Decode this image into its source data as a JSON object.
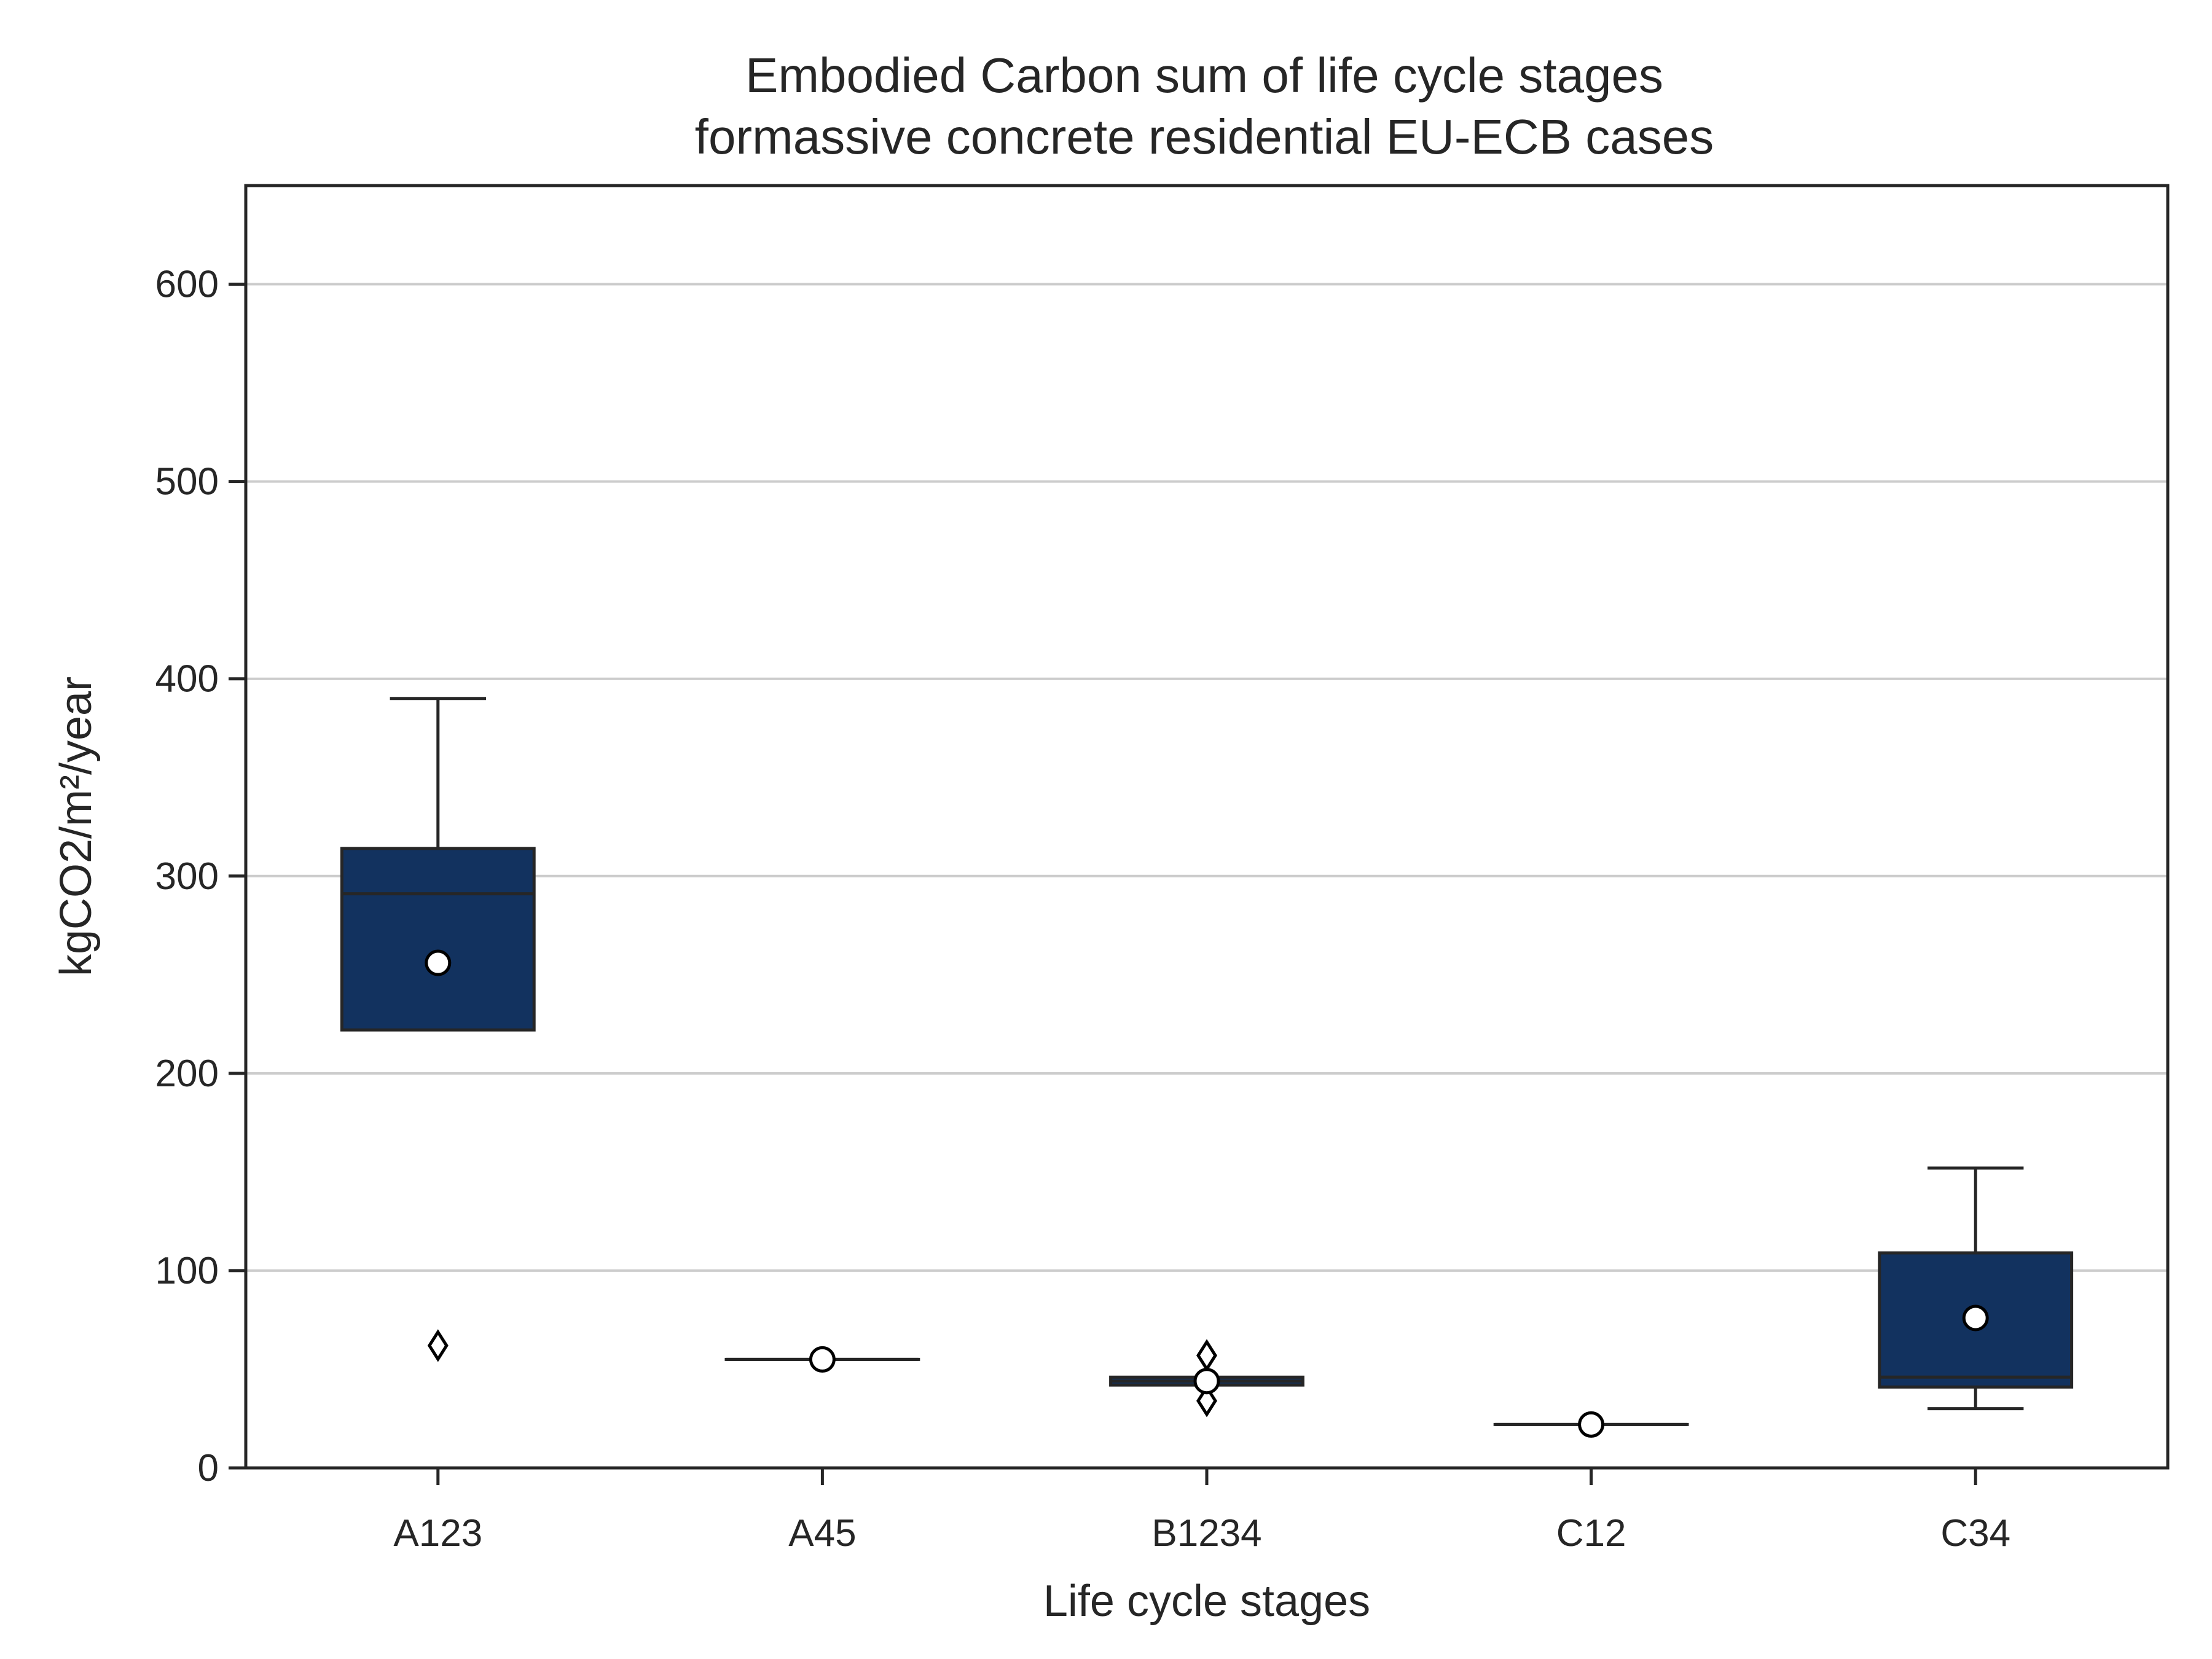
{
  "chart_data": {
    "type": "box",
    "title_lines": [
      "Embodied Carbon sum of life cycle stages",
      "formassive concrete residential EU-ECB cases"
    ],
    "xlabel": "Life cycle stages",
    "ylabel": "kgCO2/m²/year",
    "ylim": [
      0,
      650
    ],
    "yticks": [
      0,
      100,
      200,
      300,
      400,
      500,
      600
    ],
    "ytick_labels": [
      "0",
      "100",
      "200",
      "300",
      "400",
      "500",
      "600"
    ],
    "grid": "horizontal",
    "box_color": "#12325f",
    "categories": [
      "A123",
      "A45",
      "B1234",
      "C12",
      "C34"
    ],
    "boxes": [
      {
        "category": "A123",
        "whisker_low": 222,
        "q1": 222,
        "median": 291,
        "q3": 314,
        "whisker_high": 390,
        "mean": 256,
        "outliers": [
          62
        ]
      },
      {
        "category": "A45",
        "whisker_low": 55,
        "q1": 55,
        "median": 55,
        "q3": 55,
        "whisker_high": 55,
        "mean": 55,
        "outliers": []
      },
      {
        "category": "B1234",
        "whisker_low": 42,
        "q1": 42,
        "median": 44,
        "q3": 46,
        "whisker_high": 46,
        "mean": 44,
        "outliers": [
          57,
          34
        ]
      },
      {
        "category": "C12",
        "whisker_low": 22,
        "q1": 22,
        "median": 22,
        "q3": 22,
        "whisker_high": 22,
        "mean": 22,
        "outliers": []
      },
      {
        "category": "C34",
        "whisker_low": 30,
        "q1": 41,
        "median": 46,
        "q3": 109,
        "whisker_high": 152,
        "mean": 76,
        "outliers": []
      }
    ]
  }
}
